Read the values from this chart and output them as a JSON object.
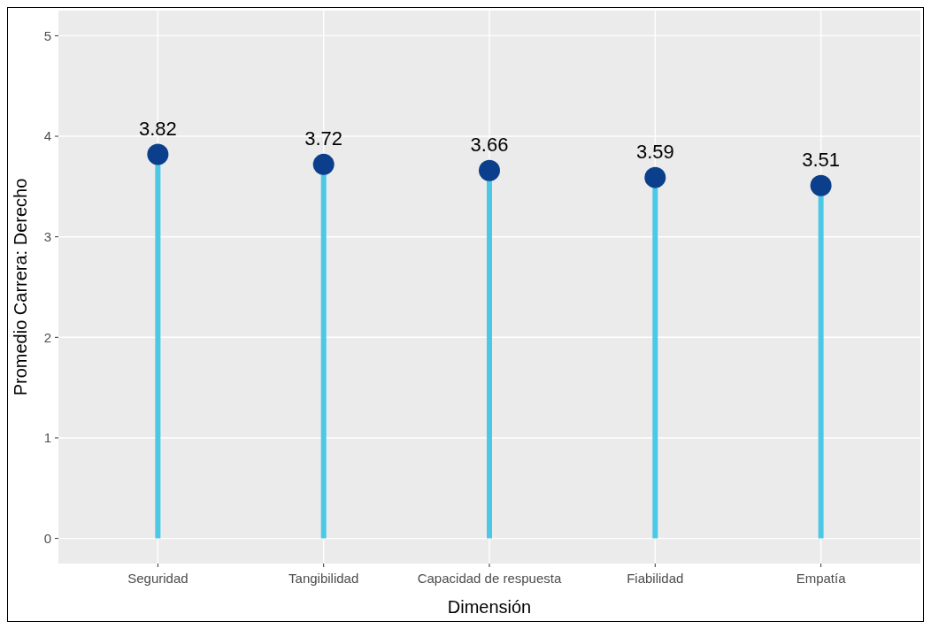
{
  "chart_data": {
    "type": "lollipop",
    "xlabel": "Dimensión",
    "ylabel": "Promedio Carrera: Derecho",
    "categories": [
      "Seguridad",
      "Tangibilidad",
      "Capacidad de respuesta",
      "Fiabilidad",
      "Empatía"
    ],
    "series": [
      {
        "color": "#0b3f8c",
        "values": [
          3.82,
          3.72,
          3.66,
          3.59,
          3.51
        ]
      }
    ],
    "ylim": [
      -0.25,
      5.25
    ],
    "yticks": [
      0,
      1,
      2,
      3,
      4,
      5
    ],
    "grid": true,
    "data_labels": true,
    "marker": "circle"
  }
}
